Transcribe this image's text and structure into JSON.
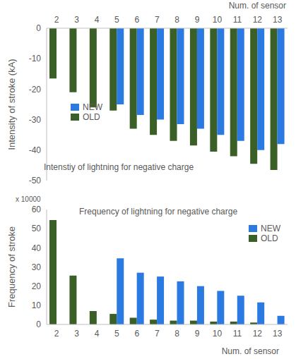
{
  "chart_data": [
    {
      "type": "bar",
      "title": "Intenstiy of lightning for negative charge",
      "x_label": "Num. of sensor",
      "y_label": "Intensity of stroke (kA)",
      "categories": [
        "2",
        "3",
        "4",
        "5",
        "6",
        "7",
        "8",
        "9",
        "10",
        "11",
        "12",
        "13"
      ],
      "series": [
        {
          "name": "NEW",
          "color": "#2a7ae2",
          "values": [
            null,
            null,
            null,
            -25,
            -28.5,
            -30,
            -31.5,
            -33,
            -35,
            -37,
            -40,
            -38
          ]
        },
        {
          "name": "OLD",
          "color": "#3a5f27",
          "values": [
            -16.5,
            -21,
            -26,
            -27,
            -33,
            -35,
            -37,
            -38.5,
            -40.5,
            -42,
            -44.5,
            -46.5
          ]
        }
      ],
      "ylim": [
        -50,
        0
      ],
      "yticks": [
        0,
        -10,
        -20,
        -30,
        -40,
        -50
      ],
      "grid": false,
      "legend": "left"
    },
    {
      "type": "bar",
      "title": "Frequency of lightning for negative charge",
      "x_label": "Num. of sensor",
      "y_label": "Frequency of stroke",
      "annotations": [
        "x 10000"
      ],
      "categories": [
        "2",
        "3",
        "4",
        "5",
        "6",
        "7",
        "8",
        "9",
        "10",
        "11",
        "12",
        "13"
      ],
      "series": [
        {
          "name": "NEW",
          "color": "#2a7ae2",
          "values": [
            null,
            null,
            null,
            34.5,
            27,
            25,
            22.5,
            20,
            17.5,
            15,
            11.5,
            4.5
          ]
        },
        {
          "name": "OLD",
          "color": "#3a5f27",
          "values": [
            54.5,
            25.5,
            7,
            5.5,
            3.5,
            2.5,
            2,
            2,
            1.5,
            1.5,
            1,
            0
          ]
        }
      ],
      "ylim": [
        0,
        60
      ],
      "yticks": [
        0,
        10,
        20,
        30,
        40,
        50,
        60
      ],
      "grid": false,
      "legend": "upper right"
    }
  ]
}
